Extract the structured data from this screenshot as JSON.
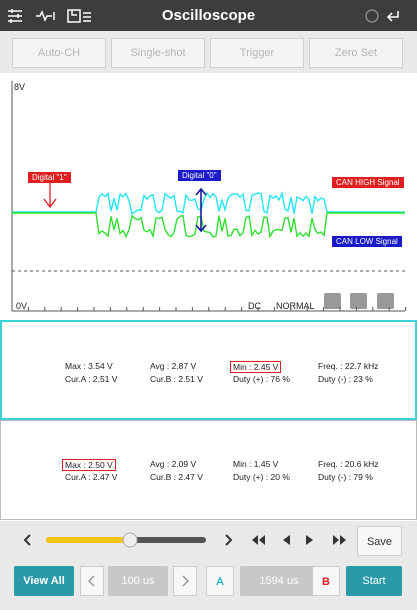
{
  "header": {
    "title": "Oscilloscope"
  },
  "toolbar": [
    "Auto-CH",
    "Single-shot",
    "Trigger",
    "Zero Set"
  ],
  "scope": {
    "top_label": "8V",
    "bottom_label": "0V",
    "coupling": "DC",
    "mode": "NORMAL",
    "annotations": {
      "digital_1": "Digital \"1\"",
      "digital_0": "Digital \"0\"",
      "can_high": "CAN HIGH Signal",
      "can_low": "CAN LOW Signal"
    }
  },
  "panels": [
    {
      "rows": [
        [
          "Max : 3.54 V",
          "Avg : 2.87 V",
          "Min : 2.45 V",
          "Freq. : 22.7 kHz"
        ],
        [
          "Cur.A : 2.51 V",
          "Cur.B : 2.51 V",
          "Duty (+) : 76 %",
          "Duty (-) : 23 %"
        ]
      ]
    },
    {
      "rows": [
        [
          "Max : 2.50 V",
          "Avg : 2.09 V",
          "Min : 1.45 V",
          "Freq. : 20.6 kHz"
        ],
        [
          "Cur.A : 2.47 V",
          "Cur.B : 2.47 V",
          "Duty (+) : 20 %",
          "Duty (-) : 79 %"
        ]
      ]
    }
  ],
  "controls": {
    "save": "Save",
    "view_all": "View All",
    "cursor_a_time": "100 us",
    "cursor_a": "A",
    "cursor_b_time": "1594 us",
    "cursor_b": "B",
    "start": "Start"
  }
}
